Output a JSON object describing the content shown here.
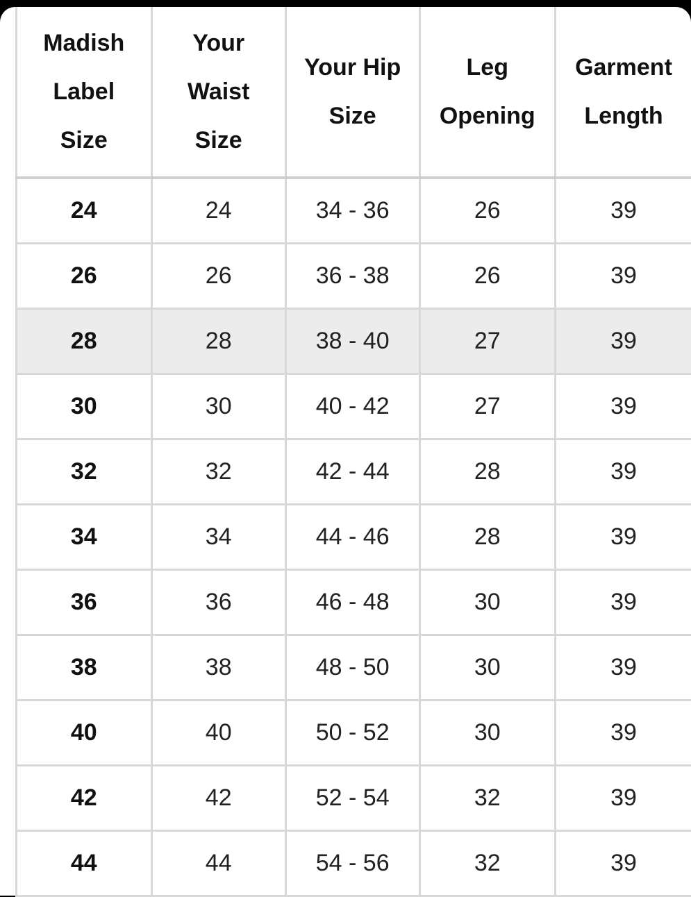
{
  "table": {
    "headers": [
      [
        "Madish",
        "Label",
        "Size"
      ],
      [
        "Your",
        "Waist",
        "Size"
      ],
      [
        "Your Hip",
        "Size"
      ],
      [
        "Leg",
        "Opening"
      ],
      [
        "Garment",
        "Length"
      ]
    ],
    "rows": [
      [
        "24",
        "24",
        "34 - 36",
        "26",
        "39"
      ],
      [
        "26",
        "26",
        "36 - 38",
        "26",
        "39"
      ],
      [
        "28",
        "28",
        "38 - 40",
        "27",
        "39"
      ],
      [
        "30",
        "30",
        "40 - 42",
        "27",
        "39"
      ],
      [
        "32",
        "32",
        "42 - 44",
        "28",
        "39"
      ],
      [
        "34",
        "34",
        "44 - 46",
        "28",
        "39"
      ],
      [
        "36",
        "36",
        "46 - 48",
        "30",
        "39"
      ],
      [
        "38",
        "38",
        "48 - 50",
        "30",
        "39"
      ],
      [
        "40",
        "40",
        "50 - 52",
        "30",
        "39"
      ],
      [
        "42",
        "42",
        "52 - 54",
        "32",
        "39"
      ],
      [
        "44",
        "44",
        "54 - 56",
        "32",
        "39"
      ]
    ],
    "highlighted_row": "28",
    "colors": {
      "highlight": "#ececec",
      "grid": "#d8d8d8"
    }
  }
}
